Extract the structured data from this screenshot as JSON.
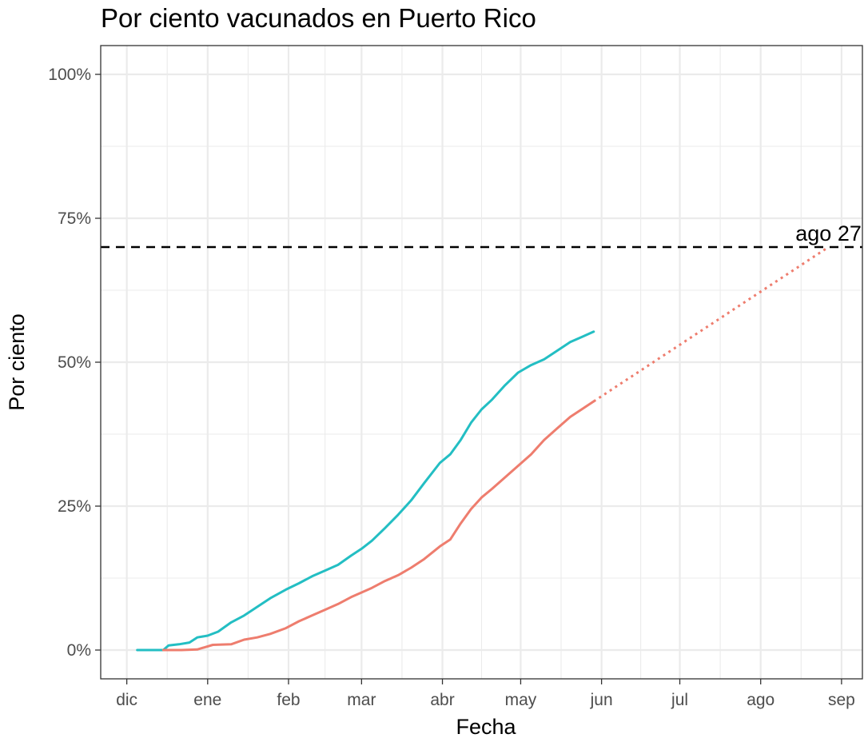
{
  "chart_data": {
    "type": "line",
    "title": "Por ciento vacunados en Puerto Rico",
    "xlabel": "Fecha",
    "ylabel": "Por ciento",
    "x_axis": {
      "ticks": [
        {
          "date": "2020-12-01",
          "label": "dic"
        },
        {
          "date": "2021-01-01",
          "label": "ene"
        },
        {
          "date": "2021-02-01",
          "label": "feb"
        },
        {
          "date": "2021-03-01",
          "label": "mar"
        },
        {
          "date": "2021-04-01",
          "label": "abr"
        },
        {
          "date": "2021-05-01",
          "label": "may"
        },
        {
          "date": "2021-06-01",
          "label": "jun"
        },
        {
          "date": "2021-07-01",
          "label": "jul"
        },
        {
          "date": "2021-08-01",
          "label": "ago"
        },
        {
          "date": "2021-09-01",
          "label": "sep"
        }
      ],
      "range": [
        "2020-11-21",
        "2021-09-09"
      ]
    },
    "y_axis": {
      "ticks": [
        {
          "value": 0,
          "label": "0%"
        },
        {
          "value": 25,
          "label": "25%"
        },
        {
          "value": 50,
          "label": "50%"
        },
        {
          "value": 75,
          "label": "75%"
        },
        {
          "value": 100,
          "label": "100%"
        }
      ],
      "range": [
        -5,
        105
      ]
    },
    "grid": true,
    "colors": {
      "teal_series": "#23BEC3",
      "salmon_series": "#EE7D6E",
      "reference_line": "#000000",
      "grid": "#EBEBEB",
      "panel_border": "#333333"
    },
    "reference_line": {
      "y": 70,
      "style": "dashed"
    },
    "annotation": {
      "text": "ago 27",
      "date": "2021-08-27",
      "y": 70
    },
    "series": [
      {
        "color_key": "teal_series",
        "style": "solid",
        "points": [
          [
            "2020-12-05",
            0
          ],
          [
            "2020-12-10",
            0
          ],
          [
            "2020-12-15",
            0
          ],
          [
            "2020-12-17",
            0.8
          ],
          [
            "2020-12-21",
            1.0
          ],
          [
            "2020-12-25",
            1.3
          ],
          [
            "2020-12-28",
            2.2
          ],
          [
            "2021-01-01",
            2.5
          ],
          [
            "2021-01-05",
            3.2
          ],
          [
            "2021-01-10",
            4.8
          ],
          [
            "2021-01-15",
            6.0
          ],
          [
            "2021-01-20",
            7.5
          ],
          [
            "2021-01-25",
            9.0
          ],
          [
            "2021-01-31",
            10.5
          ],
          [
            "2021-02-05",
            11.6
          ],
          [
            "2021-02-10",
            12.8
          ],
          [
            "2021-02-15",
            13.8
          ],
          [
            "2021-02-20",
            14.8
          ],
          [
            "2021-02-25",
            16.4
          ],
          [
            "2021-03-01",
            17.6
          ],
          [
            "2021-03-05",
            19.0
          ],
          [
            "2021-03-10",
            21.2
          ],
          [
            "2021-03-15",
            23.5
          ],
          [
            "2021-03-20",
            26.0
          ],
          [
            "2021-03-25",
            29.0
          ],
          [
            "2021-03-31",
            32.5
          ],
          [
            "2021-04-04",
            34.0
          ],
          [
            "2021-04-08",
            36.5
          ],
          [
            "2021-04-12",
            39.5
          ],
          [
            "2021-04-16",
            41.8
          ],
          [
            "2021-04-20",
            43.5
          ],
          [
            "2021-04-25",
            46.0
          ],
          [
            "2021-04-30",
            48.2
          ],
          [
            "2021-05-05",
            49.5
          ],
          [
            "2021-05-10",
            50.5
          ],
          [
            "2021-05-15",
            52.0
          ],
          [
            "2021-05-20",
            53.5
          ],
          [
            "2021-05-25",
            54.5
          ],
          [
            "2021-05-29",
            55.3
          ]
        ]
      },
      {
        "color_key": "salmon_series",
        "style": "solid",
        "points": [
          [
            "2020-12-15",
            0
          ],
          [
            "2020-12-22",
            0
          ],
          [
            "2020-12-28",
            0.1
          ],
          [
            "2021-01-03",
            0.9
          ],
          [
            "2021-01-10",
            1.0
          ],
          [
            "2021-01-15",
            1.8
          ],
          [
            "2021-01-20",
            2.2
          ],
          [
            "2021-01-25",
            2.8
          ],
          [
            "2021-01-31",
            3.8
          ],
          [
            "2021-02-05",
            5.0
          ],
          [
            "2021-02-10",
            6.0
          ],
          [
            "2021-02-15",
            7.0
          ],
          [
            "2021-02-20",
            8.0
          ],
          [
            "2021-02-25",
            9.2
          ],
          [
            "2021-03-01",
            10.0
          ],
          [
            "2021-03-05",
            10.8
          ],
          [
            "2021-03-10",
            12.0
          ],
          [
            "2021-03-15",
            13.0
          ],
          [
            "2021-03-20",
            14.3
          ],
          [
            "2021-03-25",
            15.8
          ],
          [
            "2021-03-31",
            18.0
          ],
          [
            "2021-04-04",
            19.2
          ],
          [
            "2021-04-08",
            22.0
          ],
          [
            "2021-04-12",
            24.5
          ],
          [
            "2021-04-16",
            26.5
          ],
          [
            "2021-04-20",
            28.0
          ],
          [
            "2021-04-25",
            30.0
          ],
          [
            "2021-04-30",
            32.0
          ],
          [
            "2021-05-05",
            34.0
          ],
          [
            "2021-05-10",
            36.5
          ],
          [
            "2021-05-15",
            38.5
          ],
          [
            "2021-05-20",
            40.5
          ],
          [
            "2021-05-25",
            42.0
          ],
          [
            "2021-05-29",
            43.2
          ]
        ]
      },
      {
        "color_key": "salmon_series",
        "style": "dotted",
        "points": [
          [
            "2021-05-29",
            43.2
          ],
          [
            "2021-08-27",
            70
          ]
        ]
      }
    ]
  }
}
